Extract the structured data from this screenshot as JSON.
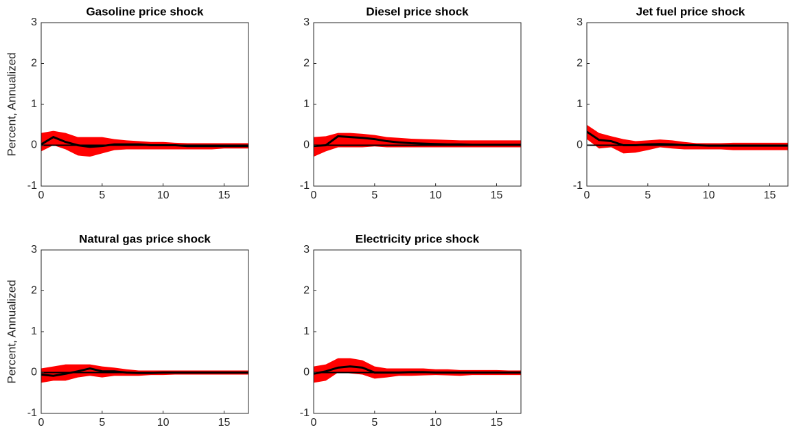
{
  "chart_data": [
    {
      "type": "line",
      "title": "Gasoline price shock",
      "ylabel": "Percent, Annualized",
      "x": [
        0,
        1,
        2,
        3,
        4,
        5,
        6,
        7,
        8,
        9,
        10,
        11,
        12,
        13,
        14,
        15,
        16,
        17
      ],
      "values": [
        0.02,
        0.2,
        0.08,
        0.0,
        -0.04,
        -0.02,
        0.02,
        0.02,
        0.02,
        0.0,
        0.0,
        0.0,
        -0.02,
        -0.02,
        -0.02,
        -0.02,
        -0.02,
        -0.02
      ],
      "upper": [
        0.3,
        0.35,
        0.3,
        0.2,
        0.2,
        0.2,
        0.15,
        0.12,
        0.1,
        0.08,
        0.08,
        0.06,
        0.05,
        0.05,
        0.05,
        0.05,
        0.05,
        0.05
      ],
      "lower": [
        -0.15,
        0.0,
        -0.1,
        -0.25,
        -0.28,
        -0.2,
        -0.12,
        -0.1,
        -0.1,
        -0.1,
        -0.1,
        -0.1,
        -0.1,
        -0.1,
        -0.1,
        -0.08,
        -0.08,
        -0.08
      ],
      "color": "#000000",
      "band_color": "#ff0000",
      "hline": 0,
      "xlim": [
        0,
        17
      ],
      "xticks": [
        0,
        5,
        10,
        15
      ],
      "ylim": [
        -1,
        3
      ],
      "yticks": [
        -1,
        0,
        1,
        2,
        3
      ]
    },
    {
      "type": "line",
      "title": "Diesel price shock",
      "x": [
        0,
        1,
        2,
        3,
        4,
        5,
        6,
        7,
        8,
        9,
        10,
        11,
        12,
        13,
        14,
        15,
        16,
        17
      ],
      "values": [
        -0.02,
        0.0,
        0.22,
        0.2,
        0.18,
        0.15,
        0.1,
        0.07,
        0.05,
        0.04,
        0.03,
        0.02,
        0.02,
        0.01,
        0.01,
        0.01,
        0.01,
        0.01
      ],
      "upper": [
        0.2,
        0.22,
        0.3,
        0.3,
        0.28,
        0.25,
        0.2,
        0.18,
        0.16,
        0.15,
        0.14,
        0.13,
        0.12,
        0.12,
        0.12,
        0.12,
        0.12,
        0.12
      ],
      "lower": [
        -0.28,
        -0.15,
        -0.05,
        -0.05,
        -0.05,
        -0.03,
        -0.05,
        -0.05,
        -0.05,
        -0.05,
        -0.05,
        -0.05,
        -0.05,
        -0.05,
        -0.05,
        -0.05,
        -0.05,
        -0.05
      ],
      "color": "#000000",
      "band_color": "#ff0000",
      "hline": 0,
      "xlim": [
        0,
        17
      ],
      "xticks": [
        0,
        5,
        10,
        15
      ],
      "ylim": [
        -1,
        3
      ],
      "yticks": [
        -1,
        0,
        1,
        2,
        3
      ]
    },
    {
      "type": "line",
      "title": "Jet fuel price shock",
      "x": [
        0,
        1,
        2,
        3,
        4,
        5,
        6,
        7,
        8,
        9,
        10,
        11,
        12,
        13,
        14,
        15,
        16,
        17
      ],
      "values": [
        0.33,
        0.13,
        0.1,
        0.0,
        0.0,
        0.02,
        0.03,
        0.02,
        0.0,
        0.0,
        -0.01,
        -0.01,
        -0.01,
        -0.01,
        -0.01,
        -0.01,
        -0.01,
        -0.01
      ],
      "upper": [
        0.5,
        0.3,
        0.22,
        0.15,
        0.1,
        0.12,
        0.14,
        0.12,
        0.08,
        0.05,
        0.05,
        0.05,
        0.06,
        0.06,
        0.06,
        0.06,
        0.06,
        0.06
      ],
      "lower": [
        0.15,
        -0.08,
        -0.05,
        -0.2,
        -0.18,
        -0.12,
        -0.05,
        -0.08,
        -0.1,
        -0.1,
        -0.1,
        -0.1,
        -0.12,
        -0.12,
        -0.12,
        -0.12,
        -0.12,
        -0.12
      ],
      "color": "#000000",
      "band_color": "#ff0000",
      "hline": 0,
      "xlim": [
        0,
        17
      ],
      "xticks": [
        0,
        5,
        10,
        15
      ],
      "ylim": [
        -1,
        3
      ],
      "yticks": [
        -1,
        0,
        1,
        2,
        3
      ]
    },
    {
      "type": "line",
      "title": "Natural gas price shock",
      "ylabel": "Percent, Annualized",
      "x": [
        0,
        1,
        2,
        3,
        4,
        5,
        6,
        7,
        8,
        9,
        10,
        11,
        12,
        13,
        14,
        15,
        16,
        17
      ],
      "values": [
        -0.05,
        -0.08,
        -0.03,
        0.03,
        0.1,
        0.03,
        0.03,
        0.0,
        -0.01,
        -0.01,
        0,
        0,
        0,
        0,
        0,
        0,
        0,
        0
      ],
      "upper": [
        0.1,
        0.15,
        0.2,
        0.2,
        0.2,
        0.15,
        0.12,
        0.08,
        0.05,
        0.05,
        0.05,
        0.05,
        0.05,
        0.05,
        0.05,
        0.05,
        0.05,
        0.05
      ],
      "lower": [
        -0.25,
        -0.2,
        -0.2,
        -0.12,
        -0.08,
        -0.12,
        -0.08,
        -0.08,
        -0.08,
        -0.06,
        -0.06,
        -0.05,
        -0.05,
        -0.05,
        -0.05,
        -0.05,
        -0.05,
        -0.05
      ],
      "color": "#000000",
      "band_color": "#ff0000",
      "hline": 0,
      "xlim": [
        0,
        17
      ],
      "xticks": [
        0,
        5,
        10,
        15
      ],
      "ylim": [
        -1,
        3
      ],
      "yticks": [
        -1,
        0,
        1,
        2,
        3
      ]
    },
    {
      "type": "line",
      "title": "Electricity price shock",
      "x": [
        0,
        1,
        2,
        3,
        4,
        5,
        6,
        7,
        8,
        9,
        10,
        11,
        12,
        13,
        14,
        15,
        16,
        17
      ],
      "values": [
        -0.03,
        0.03,
        0.12,
        0.15,
        0.12,
        0.0,
        0.0,
        0.0,
        0.01,
        0.01,
        0,
        0,
        0,
        0,
        0,
        0,
        0,
        0
      ],
      "upper": [
        0.15,
        0.2,
        0.35,
        0.35,
        0.3,
        0.15,
        0.1,
        0.1,
        0.1,
        0.1,
        0.08,
        0.08,
        0.06,
        0.06,
        0.06,
        0.06,
        0.05,
        0.05
      ],
      "lower": [
        -0.25,
        -0.2,
        0.0,
        -0.02,
        -0.05,
        -0.15,
        -0.12,
        -0.08,
        -0.08,
        -0.07,
        -0.06,
        -0.07,
        -0.08,
        -0.06,
        -0.06,
        -0.06,
        -0.06,
        -0.06
      ],
      "color": "#000000",
      "band_color": "#ff0000",
      "hline": 0,
      "xlim": [
        0,
        17
      ],
      "xticks": [
        0,
        5,
        10,
        15
      ],
      "ylim": [
        -1,
        3
      ],
      "yticks": [
        -1,
        0,
        1,
        2,
        3
      ]
    }
  ]
}
